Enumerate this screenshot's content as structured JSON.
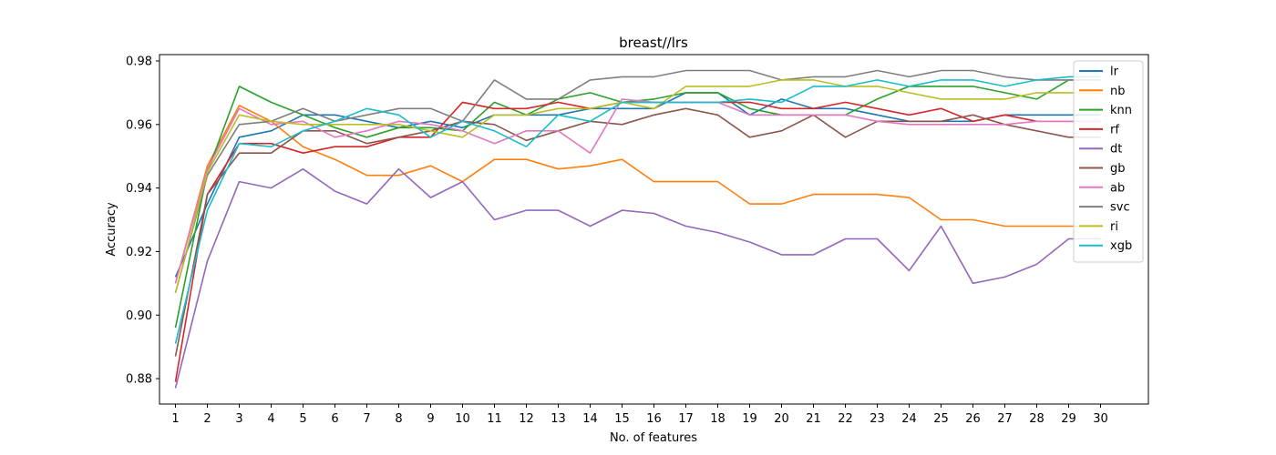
{
  "chart_data": {
    "type": "line",
    "title": "breast//lrs",
    "xlabel": "No. of features",
    "ylabel": "Accuracy",
    "xlim": [
      0.5,
      31.5
    ],
    "ylim": [
      0.872,
      0.982
    ],
    "grid": false,
    "legend_position": "top-right",
    "x": [
      1,
      2,
      3,
      4,
      5,
      6,
      7,
      8,
      9,
      10,
      11,
      12,
      13,
      14,
      15,
      16,
      17,
      18,
      19,
      20,
      21,
      22,
      23,
      24,
      25,
      26,
      27,
      28,
      29,
      30
    ],
    "yticks": [
      0.88,
      0.9,
      0.92,
      0.94,
      0.96,
      0.98
    ],
    "ytick_labels": [
      "0.88",
      "0.90",
      "0.92",
      "0.94",
      "0.96",
      "0.98"
    ],
    "series": [
      {
        "name": "lr",
        "color": "#1f77b4",
        "values": [
          0.912,
          0.935,
          0.956,
          0.958,
          0.963,
          0.963,
          0.961,
          0.959,
          0.961,
          0.959,
          0.963,
          0.963,
          0.963,
          0.965,
          0.965,
          0.965,
          0.97,
          0.97,
          0.963,
          0.968,
          0.965,
          0.965,
          0.963,
          0.961,
          0.961,
          0.961,
          0.963,
          0.963,
          0.963,
          0.963
        ]
      },
      {
        "name": "nb",
        "color": "#ff7f0e",
        "values": [
          0.91,
          0.947,
          0.966,
          0.961,
          0.953,
          0.949,
          0.944,
          0.944,
          0.947,
          0.942,
          0.949,
          0.949,
          0.946,
          0.947,
          0.949,
          0.942,
          0.942,
          0.942,
          0.935,
          0.935,
          0.938,
          0.938,
          0.938,
          0.937,
          0.93,
          0.93,
          0.928,
          0.928,
          0.928,
          0.928
        ]
      },
      {
        "name": "knn",
        "color": "#2ca02c",
        "values": [
          0.896,
          0.945,
          0.972,
          0.967,
          0.963,
          0.959,
          0.956,
          0.959,
          0.959,
          0.958,
          0.967,
          0.963,
          0.968,
          0.97,
          0.967,
          0.968,
          0.97,
          0.97,
          0.965,
          0.963,
          0.963,
          0.963,
          0.968,
          0.972,
          0.972,
          0.972,
          0.97,
          0.968,
          0.974,
          0.974
        ]
      },
      {
        "name": "rf",
        "color": "#d62728",
        "values": [
          0.879,
          0.938,
          0.954,
          0.954,
          0.951,
          0.953,
          0.953,
          0.956,
          0.956,
          0.967,
          0.965,
          0.965,
          0.967,
          0.965,
          0.967,
          0.967,
          0.967,
          0.967,
          0.967,
          0.965,
          0.965,
          0.967,
          0.965,
          0.963,
          0.965,
          0.961,
          0.963,
          0.961,
          0.961,
          0.961
        ]
      },
      {
        "name": "dt",
        "color": "#9467bd",
        "values": [
          0.877,
          0.917,
          0.942,
          0.94,
          0.946,
          0.939,
          0.935,
          0.946,
          0.937,
          0.942,
          0.93,
          0.933,
          0.933,
          0.928,
          0.933,
          0.932,
          0.928,
          0.926,
          0.923,
          0.919,
          0.919,
          0.924,
          0.924,
          0.914,
          0.928,
          0.91,
          0.912,
          0.916,
          0.924,
          0.924
        ]
      },
      {
        "name": "gb",
        "color": "#8c564b",
        "values": [
          0.887,
          0.938,
          0.951,
          0.951,
          0.958,
          0.958,
          0.954,
          0.956,
          0.958,
          0.961,
          0.96,
          0.955,
          0.958,
          0.961,
          0.96,
          0.963,
          0.965,
          0.963,
          0.956,
          0.958,
          0.963,
          0.956,
          0.961,
          0.961,
          0.961,
          0.963,
          0.96,
          0.958,
          0.956,
          0.956
        ]
      },
      {
        "name": "ab",
        "color": "#e377c2",
        "values": [
          0.91,
          0.946,
          0.965,
          0.96,
          0.961,
          0.956,
          0.958,
          0.961,
          0.96,
          0.958,
          0.954,
          0.958,
          0.958,
          0.951,
          0.968,
          0.967,
          0.967,
          0.967,
          0.963,
          0.963,
          0.963,
          0.963,
          0.961,
          0.96,
          0.96,
          0.96,
          0.96,
          0.961,
          0.961,
          0.961
        ]
      },
      {
        "name": "svc",
        "color": "#7f7f7f",
        "values": [
          0.907,
          0.944,
          0.96,
          0.961,
          0.965,
          0.961,
          0.963,
          0.965,
          0.965,
          0.961,
          0.974,
          0.968,
          0.968,
          0.974,
          0.975,
          0.975,
          0.977,
          0.977,
          0.977,
          0.974,
          0.975,
          0.975,
          0.977,
          0.975,
          0.977,
          0.977,
          0.975,
          0.974,
          0.974,
          0.974
        ]
      },
      {
        "name": "ri",
        "color": "#bcbd22",
        "values": [
          0.907,
          0.945,
          0.963,
          0.961,
          0.96,
          0.96,
          0.96,
          0.96,
          0.958,
          0.956,
          0.963,
          0.963,
          0.965,
          0.965,
          0.967,
          0.965,
          0.972,
          0.972,
          0.972,
          0.974,
          0.974,
          0.972,
          0.972,
          0.97,
          0.968,
          0.968,
          0.968,
          0.97,
          0.97,
          0.97
        ]
      },
      {
        "name": "xgb",
        "color": "#17becf",
        "values": [
          0.891,
          0.933,
          0.954,
          0.953,
          0.958,
          0.961,
          0.965,
          0.963,
          0.956,
          0.961,
          0.958,
          0.953,
          0.963,
          0.961,
          0.967,
          0.967,
          0.967,
          0.967,
          0.968,
          0.967,
          0.972,
          0.972,
          0.974,
          0.972,
          0.974,
          0.974,
          0.972,
          0.974,
          0.975,
          0.975
        ]
      }
    ]
  }
}
